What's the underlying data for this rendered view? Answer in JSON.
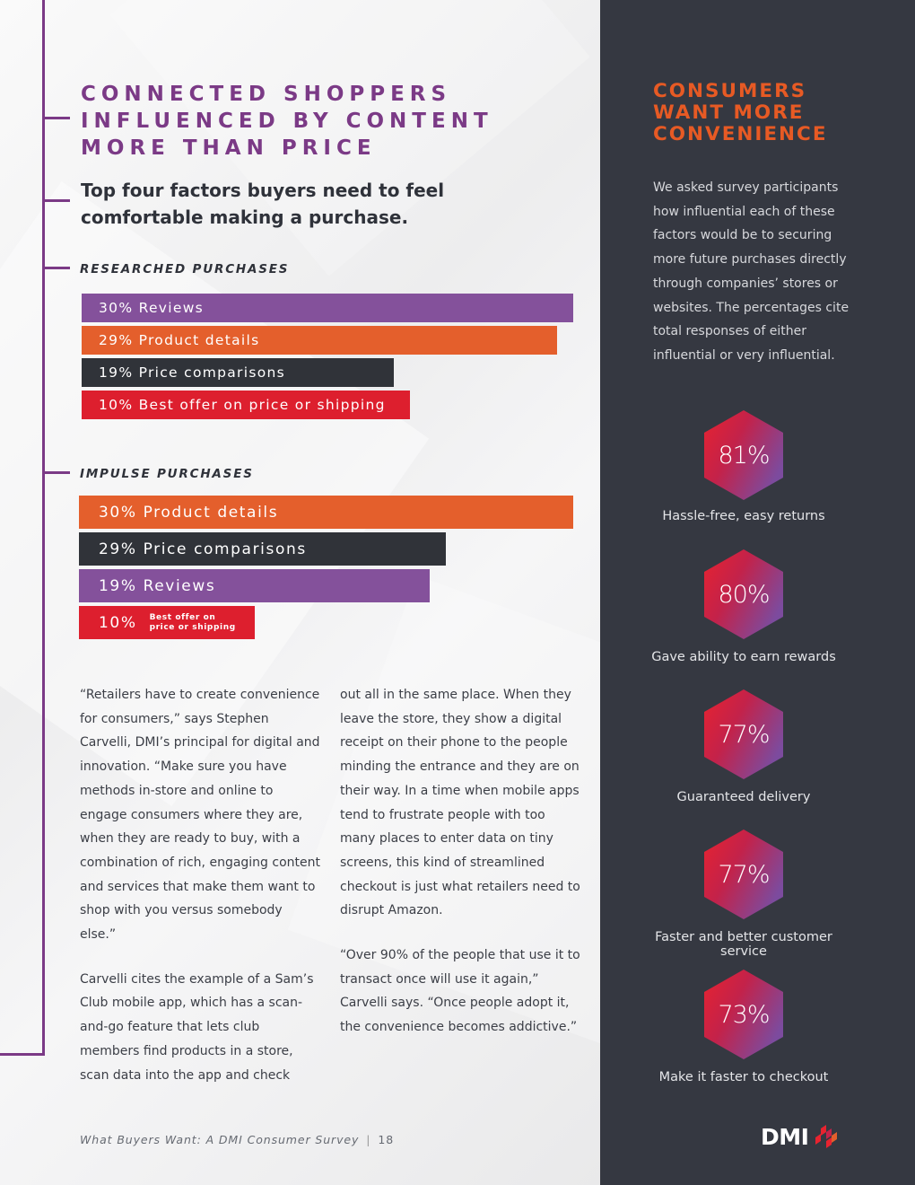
{
  "headline": "CONNECTED SHOPPERS INFLUENCED BY CONTENT MORE THAN PRICE",
  "subhead": "Top four factors buyers need to feel comfortable making a purchase.",
  "researched": {
    "label": "RESEARCHED PURCHASES",
    "bars": [
      {
        "text": "30% Reviews",
        "percent": 30,
        "color": "#84519b"
      },
      {
        "text": "29% Product details",
        "percent": 29,
        "color": "#e45f2c"
      },
      {
        "text": "19% Price comparisons",
        "percent": 19,
        "color": "#303339"
      },
      {
        "text": "10% Best offer on price or shipping",
        "percent": 10,
        "color": "#dd1f2e"
      }
    ]
  },
  "impulse": {
    "label": "IMPULSE PURCHASES",
    "bars": [
      {
        "text": "30% Product details",
        "percent": 30,
        "color": "#e45f2c"
      },
      {
        "text": "29% Price comparisons",
        "percent": 29,
        "color": "#303339"
      },
      {
        "text": "19% Reviews",
        "percent": 19,
        "color": "#84519b"
      },
      {
        "text": "10%",
        "percent": 10,
        "color": "#dd1f2e",
        "subtext_line1": "Best offer on",
        "subtext_line2": "price or shipping"
      }
    ]
  },
  "body": {
    "col1_p1": "“Retailers have to create convenience for consumers,” says Stephen Carvelli, DMI’s principal for digital and innovation. “Make sure you have methods in-store and online to engage consumers where they are, when they are ready to buy, with a combination of rich, engaging content and services that make them want to shop with you versus somebody else.”",
    "col1_p2": "Carvelli cites the example of a Sam’s Club mobile app, which has a scan-and-go feature that lets club members find products in a store, scan data into the app and check",
    "col2_p1": "out all in the same place. When they leave the store, they show a digital receipt on their phone to the people minding the entrance and they are on their way. In a time when mobile apps tend to frustrate people with too many places to enter data on tiny screens, this kind of streamlined checkout is just what retailers need to disrupt Amazon.",
    "col2_p2": "“Over 90% of the people that use it to transact once will use it again,” Carvelli says. “Once people adopt it, the convenience becomes addictive.”"
  },
  "footer": {
    "title": "What Buyers Want: A DMI Consumer Survey",
    "separator": "|",
    "page": "18"
  },
  "sidebar": {
    "title_line1": "CONSUMERS",
    "title_line2": "WANT MORE",
    "title_line3": "CONVENIENCE",
    "intro": "We asked survey participants how influential each of these factors would be to securing more future purchases directly through companies’ stores or websites. The percentages cite total responses of either influential or very influential.",
    "stats": [
      {
        "value": "81%",
        "label": "Hassle-free, easy returns"
      },
      {
        "value": "80%",
        "label": "Gave ability to earn rewards"
      },
      {
        "value": "77%",
        "label": "Guaranteed delivery"
      },
      {
        "value": "77%",
        "label": "Faster and better customer service"
      },
      {
        "value": "73%",
        "label": "Make it faster to checkout"
      }
    ],
    "logo_text": "DMI"
  },
  "colors": {
    "purple": "#7b3a86",
    "orange": "#e45f2c",
    "dark": "#303339",
    "red": "#dd1f2e",
    "sidebar_bg": "#353841"
  }
}
